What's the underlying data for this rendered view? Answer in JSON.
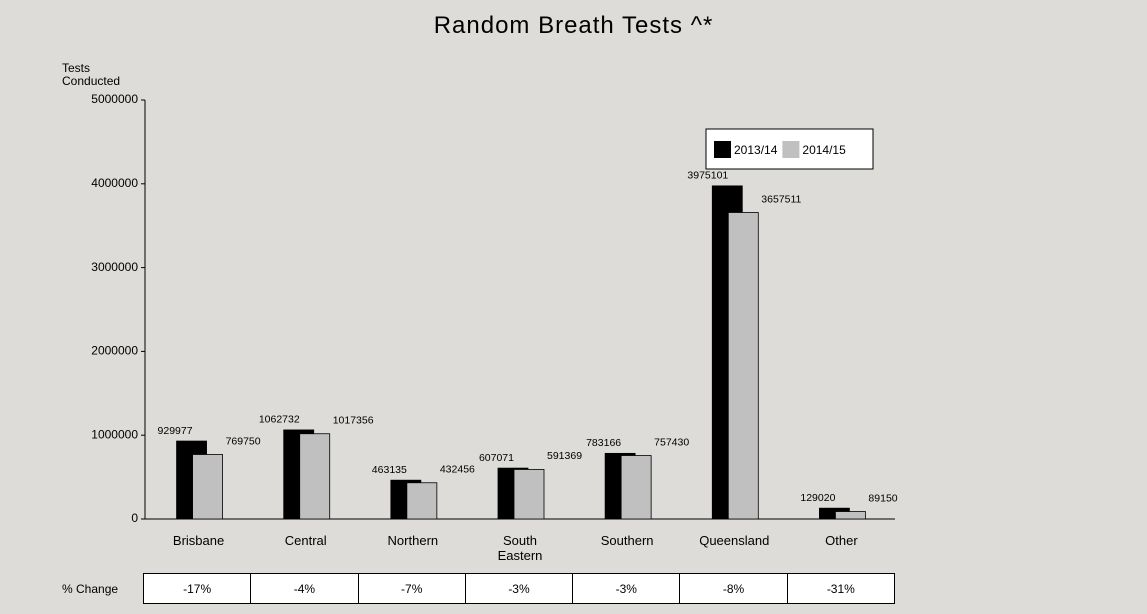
{
  "chart_data": {
    "type": "bar",
    "title": "Random Breath Tests ^*",
    "y_label": "Tests Conducted",
    "categories": [
      "Brisbane",
      "Central",
      "Northern",
      "South Eastern",
      "Southern",
      "Queensland",
      "Other"
    ],
    "series": [
      {
        "name": "2013/14",
        "color": "#000000",
        "values": [
          929977,
          1062732,
          463135,
          607071,
          783166,
          3975101,
          129020
        ]
      },
      {
        "name": "2014/15",
        "color": "#c0c0c0",
        "values": [
          769750,
          1017356,
          432456,
          591369,
          757430,
          3657511,
          89150
        ]
      }
    ],
    "ylim": [
      0,
      5000000
    ],
    "yticks": [
      0,
      1000000,
      2000000,
      3000000,
      4000000,
      5000000
    ],
    "legend": "upper right",
    "change_table": {
      "label": "% Change",
      "values": [
        -17,
        -4,
        -7,
        -3,
        -3,
        -8,
        -31
      ],
      "value_labels": [
        "-17%",
        "-4%",
        "-7%",
        "-3%",
        "-3%",
        "-8%",
        "-31%"
      ]
    }
  }
}
